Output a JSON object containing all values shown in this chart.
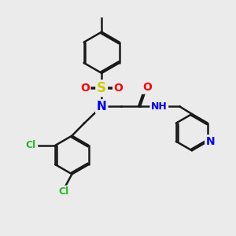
{
  "bg_color": "#ebebeb",
  "bond_color": "#1a1a1a",
  "bond_width": 1.8,
  "dbl_sep": 0.06,
  "atom_colors": {
    "S": "#cccc00",
    "N": "#0000ee",
    "O": "#ff0000",
    "Cl": "#22bb22",
    "H": "#666666"
  },
  "fs": 10,
  "fs_sm": 9
}
